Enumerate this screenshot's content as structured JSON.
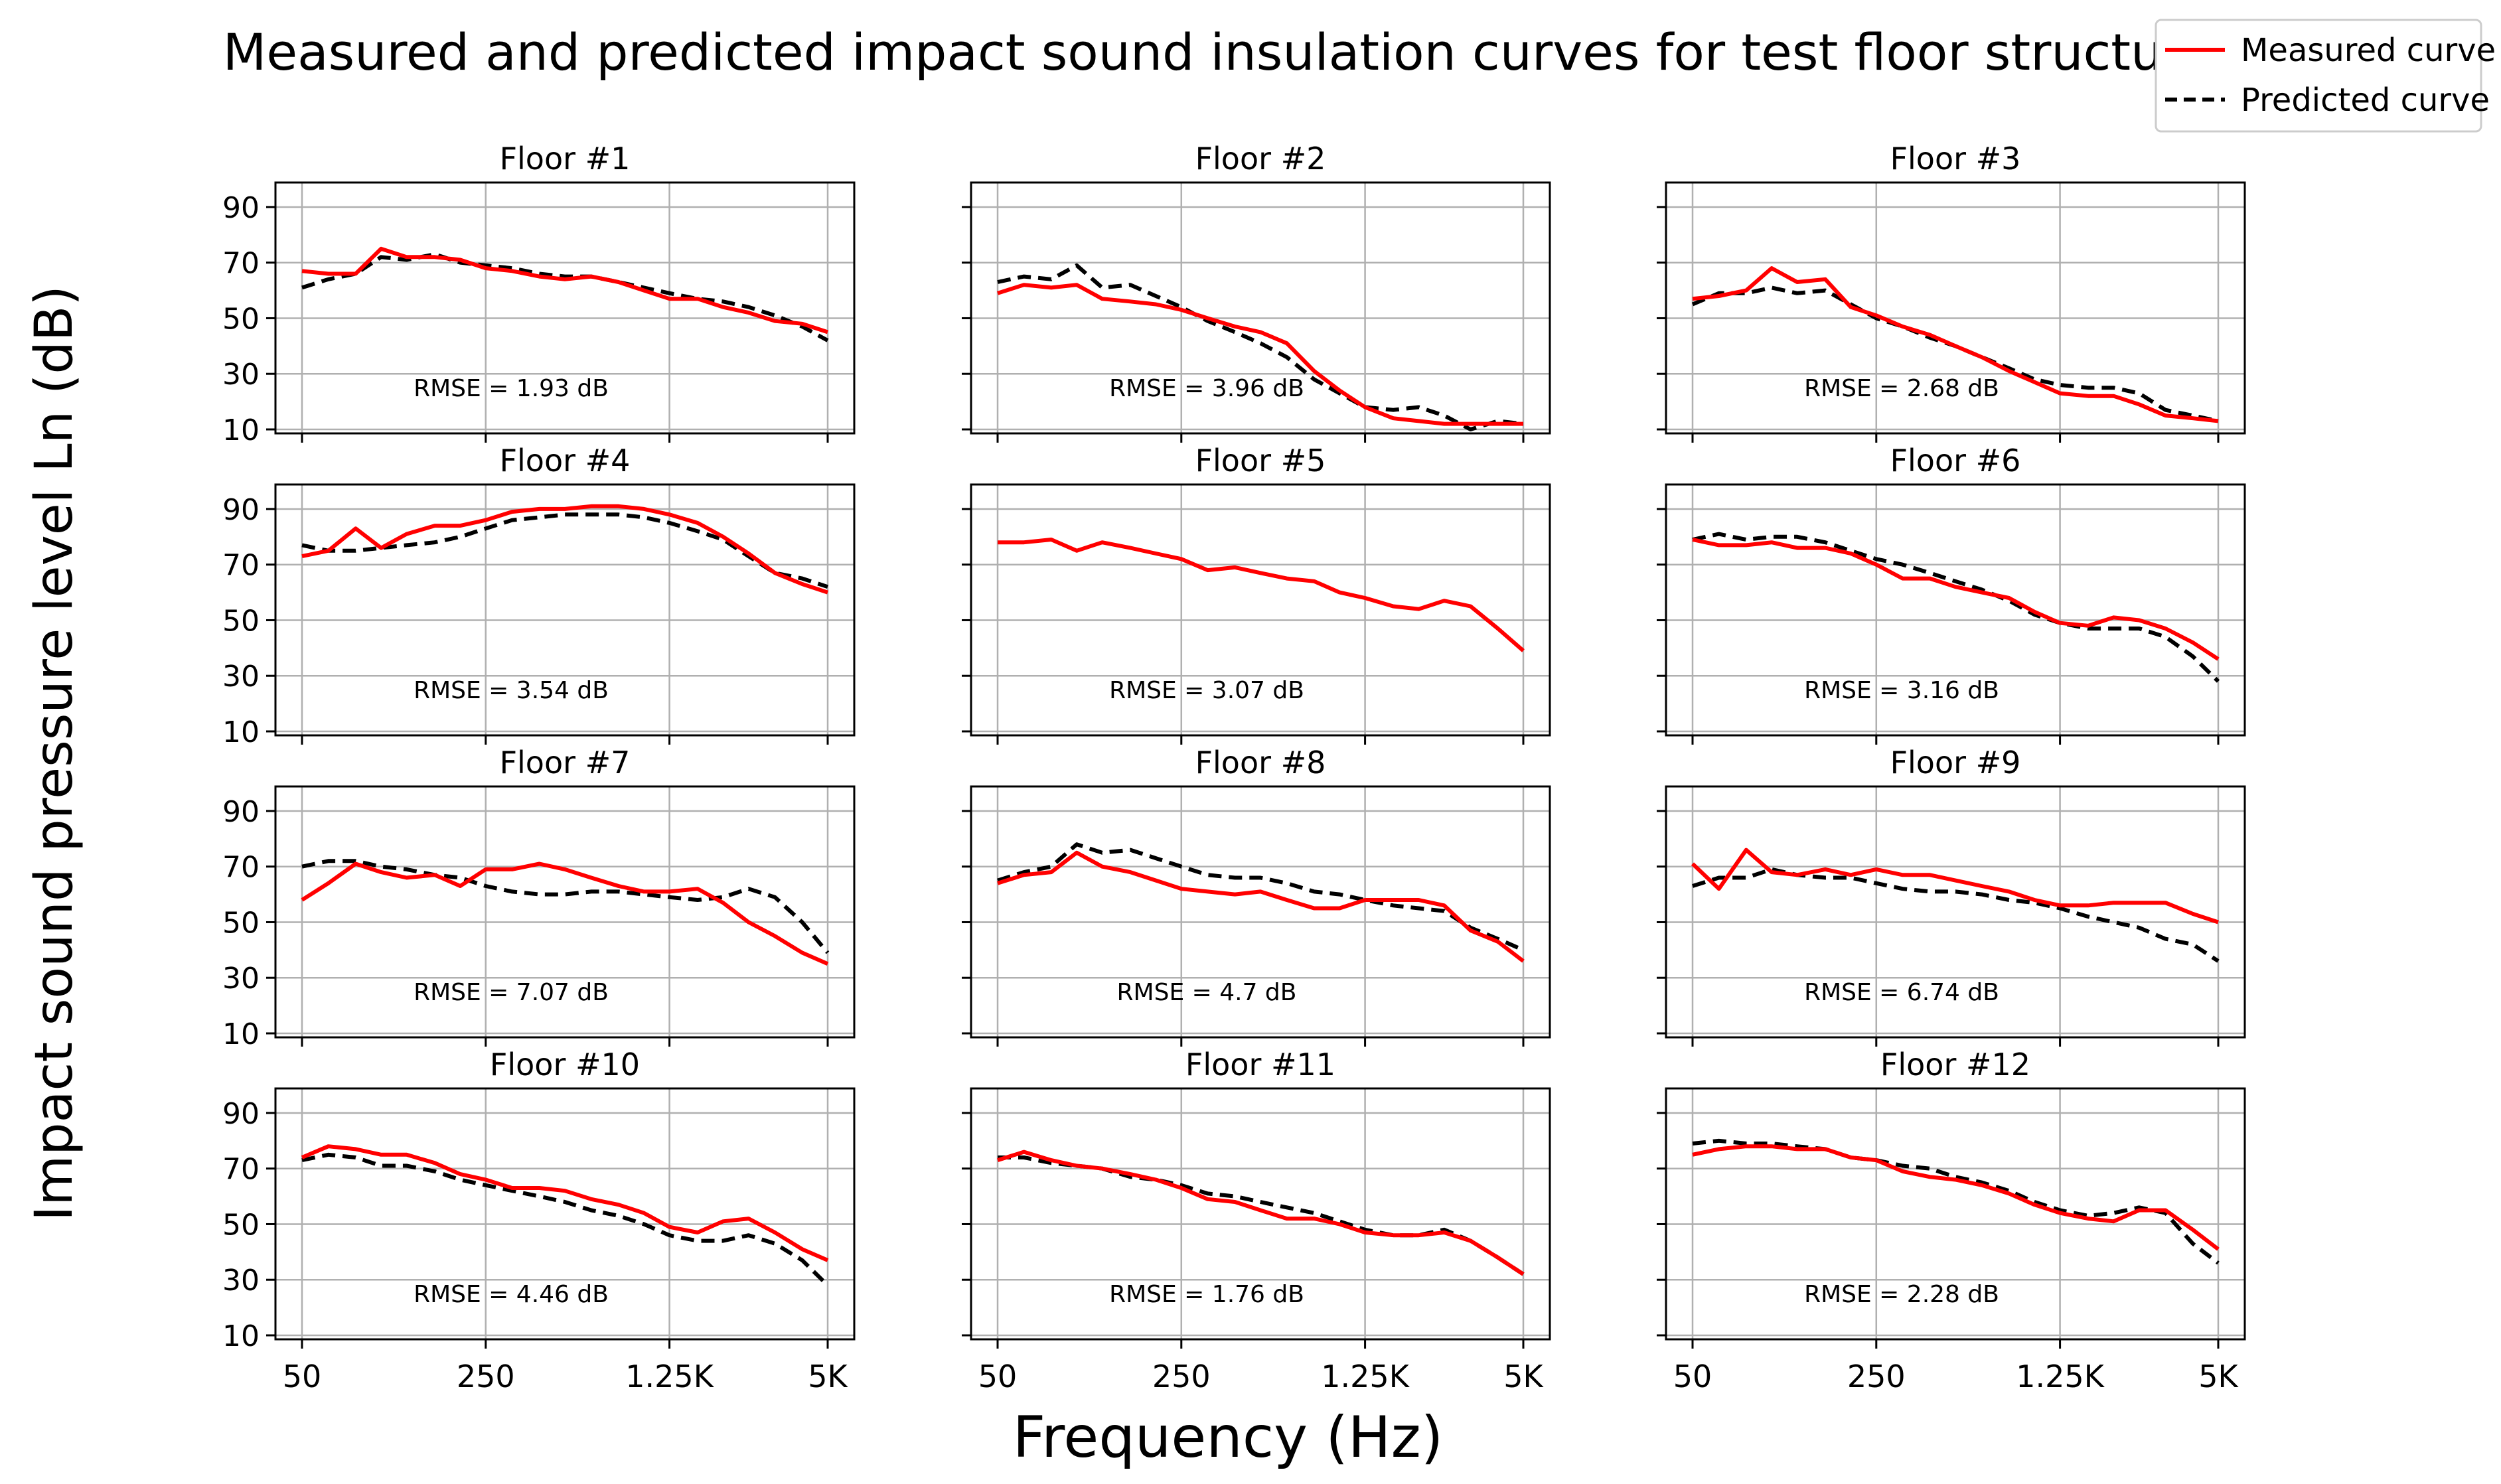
{
  "title": "Measured and predicted impact sound insulation curves for test floor structures",
  "xlabel": "Frequency (Hz)",
  "ylabel": "Impact sound pressure level Ln (dB)",
  "legend": {
    "location": "top-right",
    "items": [
      {
        "label": "Measured curve",
        "color": "#ff0000",
        "style": "solid"
      },
      {
        "label": "Predicted curve",
        "color": "#000000",
        "style": "dashed"
      }
    ]
  },
  "colors": {
    "measured": "#ff0000",
    "predicted": "#000000",
    "grid": "#b0b0b0"
  },
  "chart_data": {
    "type": "line",
    "x_scale": "log",
    "x": [
      50,
      63,
      80,
      100,
      125,
      160,
      200,
      250,
      315,
      400,
      500,
      630,
      800,
      1000,
      1250,
      1600,
      2000,
      2500,
      3150,
      4000,
      5000
    ],
    "xlim": [
      50,
      5000
    ],
    "ylim": [
      10,
      95
    ],
    "x_ticks": [
      {
        "value": 50,
        "label": "50"
      },
      {
        "value": 250,
        "label": "250"
      },
      {
        "value": 1250,
        "label": "1.25K"
      },
      {
        "value": 5000,
        "label": "5K"
      }
    ],
    "y_ticks": [
      10,
      30,
      50,
      70,
      90
    ],
    "grid": true,
    "series_names": [
      "Measured curve",
      "Predicted curve"
    ],
    "panels": [
      {
        "title": "Floor #1",
        "rmse": "RMSE = 1.93 dB",
        "measured": [
          67,
          66,
          66,
          75,
          72,
          72,
          71,
          68,
          67,
          65,
          64,
          65,
          63,
          60,
          57,
          57,
          54,
          52,
          49,
          48,
          45
        ],
        "predicted": [
          61,
          64,
          66,
          72,
          71,
          73,
          70,
          69,
          68,
          66,
          65,
          65,
          63,
          61,
          59,
          57,
          56,
          54,
          51,
          47,
          42
        ]
      },
      {
        "title": "Floor #2",
        "rmse": "RMSE = 3.96 dB",
        "measured": [
          59,
          62,
          61,
          62,
          57,
          56,
          55,
          53,
          50,
          47,
          45,
          41,
          31,
          24,
          18,
          14,
          13,
          12,
          12,
          12,
          12
        ],
        "predicted": [
          63,
          65,
          64,
          69,
          61,
          62,
          58,
          54,
          49,
          45,
          41,
          36,
          28,
          23,
          18,
          17,
          18,
          15,
          10,
          13,
          12
        ]
      },
      {
        "title": "Floor #3",
        "rmse": "RMSE = 2.68 dB",
        "measured": [
          57,
          58,
          60,
          68,
          63,
          64,
          54,
          51,
          47,
          44,
          40,
          36,
          31,
          27,
          23,
          22,
          22,
          19,
          15,
          14,
          13
        ],
        "predicted": [
          55,
          59,
          59,
          61,
          59,
          60,
          55,
          50,
          47,
          43,
          40,
          36,
          32,
          28,
          26,
          25,
          25,
          23,
          17,
          15,
          13
        ]
      },
      {
        "title": "Floor #4",
        "rmse": "RMSE = 3.54 dB",
        "measured": [
          73,
          75,
          83,
          76,
          81,
          84,
          84,
          86,
          89,
          90,
          90,
          91,
          91,
          90,
          88,
          85,
          80,
          74,
          67,
          63,
          60
        ],
        "predicted": [
          77,
          75,
          75,
          76,
          77,
          78,
          80,
          83,
          86,
          87,
          88,
          88,
          88,
          87,
          85,
          82,
          79,
          73,
          67,
          65,
          62
        ]
      },
      {
        "title": "Floor #5",
        "rmse": "RMSE = 3.07 dB",
        "measured": [
          78,
          78,
          79,
          75,
          78,
          76,
          74,
          72,
          68,
          69,
          67,
          65,
          64,
          60,
          58,
          55,
          54,
          57,
          55,
          47,
          39
        ]
      },
      {
        "title": "Floor #6",
        "rmse": "RMSE = 3.16 dB",
        "measured": [
          79,
          77,
          77,
          78,
          76,
          76,
          74,
          70,
          65,
          65,
          62,
          60,
          58,
          53,
          49,
          48,
          51,
          50,
          47,
          42,
          36
        ],
        "predicted": [
          79,
          81,
          79,
          80,
          80,
          78,
          75,
          72,
          70,
          67,
          64,
          61,
          57,
          52,
          49,
          47,
          47,
          47,
          44,
          37,
          28
        ]
      },
      {
        "title": "Floor #7",
        "rmse": "RMSE = 7.07 dB",
        "measured": [
          58,
          64,
          71,
          68,
          66,
          67,
          63,
          69,
          69,
          71,
          69,
          66,
          63,
          61,
          61,
          62,
          57,
          50,
          45,
          39,
          35
        ],
        "predicted": [
          70,
          72,
          72,
          70,
          69,
          67,
          66,
          63,
          61,
          60,
          60,
          61,
          61,
          60,
          59,
          58,
          59,
          62,
          59,
          50,
          39
        ]
      },
      {
        "title": "Floor #8",
        "rmse": "RMSE = 4.7 dB",
        "measured": [
          64,
          67,
          68,
          75,
          70,
          68,
          65,
          62,
          61,
          60,
          61,
          58,
          55,
          55,
          58,
          58,
          58,
          56,
          47,
          43,
          36
        ],
        "predicted": [
          65,
          68,
          70,
          78,
          75,
          76,
          73,
          70,
          67,
          66,
          66,
          64,
          61,
          60,
          58,
          56,
          55,
          54,
          48,
          44,
          40
        ]
      },
      {
        "title": "Floor #9",
        "rmse": "RMSE = 6.74 dB",
        "measured": [
          71,
          62,
          76,
          68,
          67,
          69,
          67,
          69,
          67,
          67,
          65,
          63,
          61,
          58,
          56,
          56,
          57,
          57,
          57,
          53,
          50
        ],
        "predicted": [
          63,
          66,
          66,
          69,
          67,
          66,
          66,
          64,
          62,
          61,
          61,
          60,
          58,
          57,
          55,
          52,
          50,
          48,
          44,
          42,
          36
        ]
      },
      {
        "title": "Floor #10",
        "rmse": "RMSE = 4.46 dB",
        "measured": [
          74,
          78,
          77,
          75,
          75,
          72,
          68,
          66,
          63,
          63,
          62,
          59,
          57,
          54,
          49,
          47,
          51,
          52,
          47,
          41,
          37
        ],
        "predicted": [
          73,
          75,
          74,
          71,
          71,
          69,
          66,
          64,
          62,
          60,
          58,
          55,
          53,
          50,
          46,
          44,
          44,
          46,
          43,
          37,
          28
        ]
      },
      {
        "title": "Floor #11",
        "rmse": "RMSE = 1.76 dB",
        "measured": [
          73,
          76,
          73,
          71,
          70,
          68,
          66,
          63,
          59,
          58,
          55,
          52,
          52,
          50,
          47,
          46,
          46,
          47,
          44,
          38,
          32
        ],
        "predicted": [
          74,
          74,
          72,
          71,
          70,
          67,
          66,
          64,
          61,
          60,
          58,
          56,
          54,
          51,
          48,
          46,
          46,
          48,
          44,
          38,
          32
        ]
      },
      {
        "title": "Floor #12",
        "rmse": "RMSE = 2.28 dB",
        "measured": [
          75,
          77,
          78,
          78,
          77,
          77,
          74,
          73,
          69,
          67,
          66,
          64,
          61,
          57,
          54,
          52,
          51,
          55,
          55,
          48,
          41
        ],
        "predicted": [
          79,
          80,
          79,
          79,
          78,
          77,
          74,
          73,
          71,
          70,
          67,
          65,
          62,
          58,
          55,
          53,
          54,
          56,
          54,
          43,
          36
        ]
      }
    ]
  }
}
